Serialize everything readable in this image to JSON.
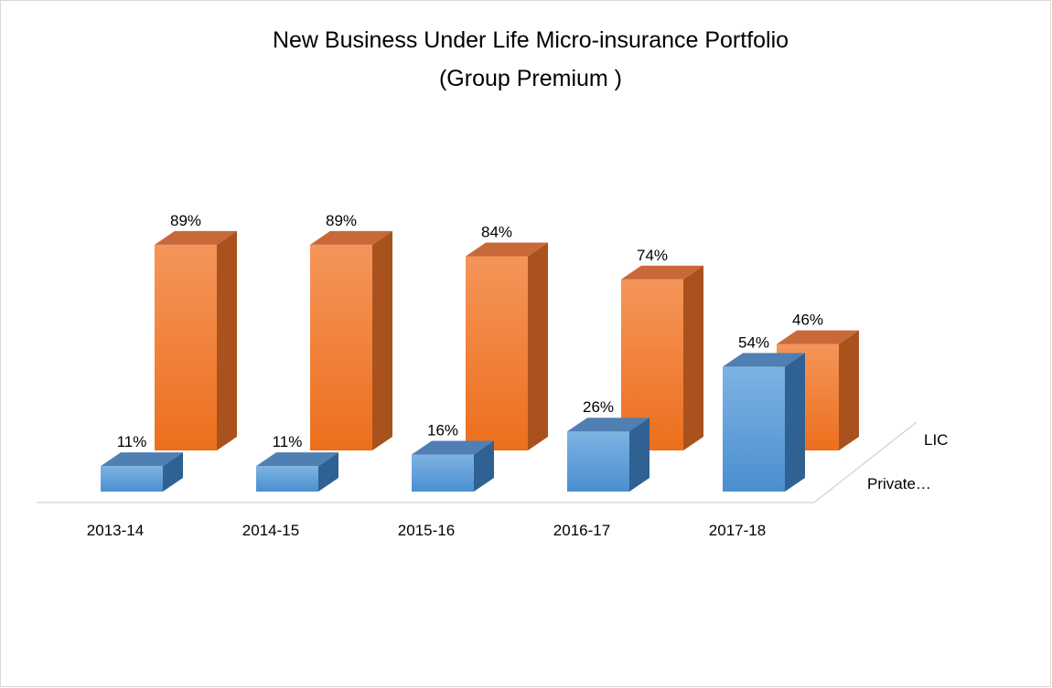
{
  "chart_data": {
    "type": "bar3d",
    "title": "New Business Under Life Micro-insurance Portfolio",
    "subtitle": "(Group Premium )",
    "categories": [
      "2013-14",
      "2014-15",
      "2015-16",
      "2016-17",
      "2017-18"
    ],
    "series": [
      {
        "name": "Private…",
        "color": "#5b9bd5",
        "values": [
          11,
          11,
          16,
          26,
          54
        ],
        "value_labels": [
          "11%",
          "11%",
          "16%",
          "26%",
          "54%"
        ]
      },
      {
        "name": "LIC",
        "color": "#ed7d31",
        "values": [
          89,
          89,
          84,
          74,
          46
        ],
        "value_labels": [
          "89%",
          "89%",
          "84%",
          "74%",
          "46%"
        ]
      }
    ]
  }
}
